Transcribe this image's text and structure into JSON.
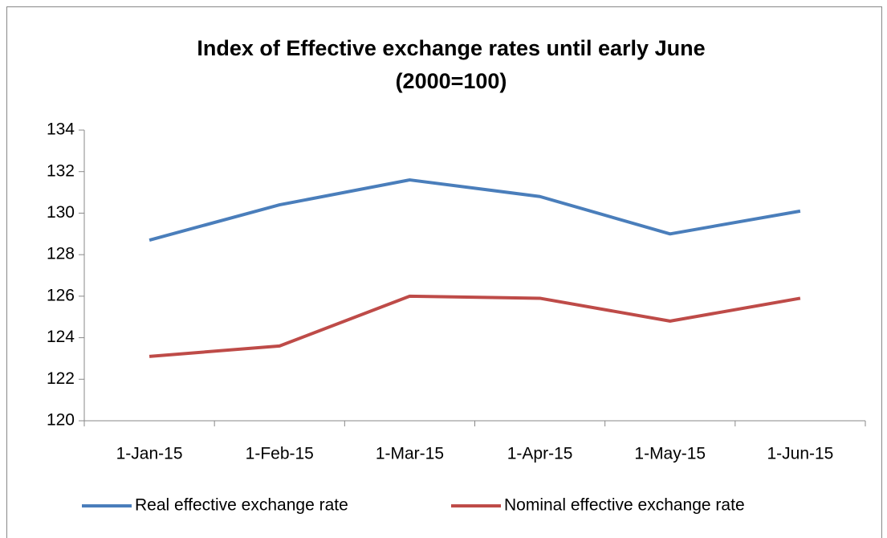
{
  "chart_data": {
    "type": "line",
    "title": "Index of Effective exchange rates until early June",
    "subtitle": "(2000=100)",
    "categories": [
      "1-Jan-15",
      "1-Feb-15",
      "1-Mar-15",
      "1-Apr-15",
      "1-May-15",
      "1-Jun-15"
    ],
    "series": [
      {
        "name": "Real effective exchange rate",
        "color": "#4a7ebb",
        "values": [
          128.7,
          130.4,
          131.6,
          130.8,
          129.0,
          130.1
        ]
      },
      {
        "name": "Nominal effective exchange rate",
        "color": "#be4b48",
        "values": [
          123.1,
          123.6,
          126.0,
          125.9,
          124.8,
          125.9
        ]
      }
    ],
    "ylim": [
      120,
      134
    ],
    "yticks": [
      120,
      122,
      124,
      126,
      128,
      130,
      132,
      134
    ],
    "grid": false,
    "legend": "bottom"
  }
}
